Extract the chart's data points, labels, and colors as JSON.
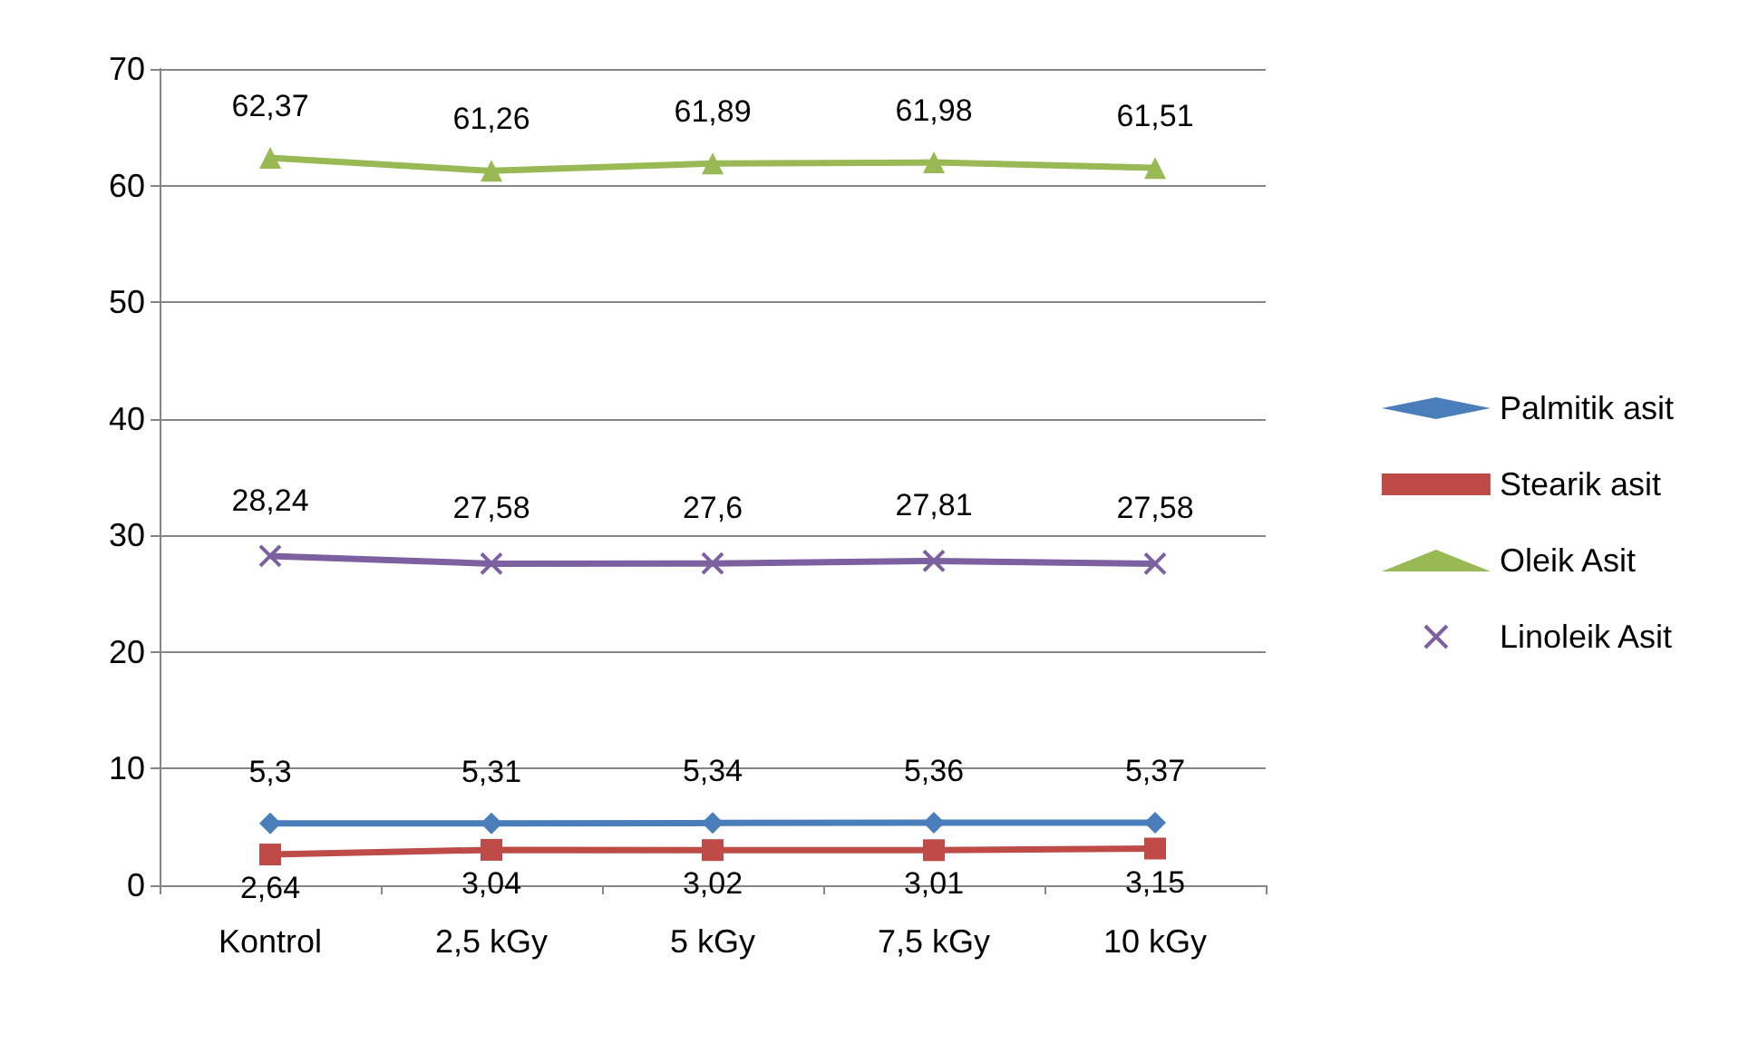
{
  "chart_data": {
    "type": "line",
    "categories": [
      "Kontrol",
      "2,5 kGy",
      "5 kGy",
      "7,5 kGy",
      "10 kGy"
    ],
    "series": [
      {
        "name": "Palmitik asit",
        "color": "#4a7ebb",
        "marker": "diamond",
        "values": [
          5.3,
          5.31,
          5.34,
          5.36,
          5.37
        ],
        "value_labels": [
          "5,3",
          "5,31",
          "5,34",
          "5,36",
          "5,37"
        ]
      },
      {
        "name": "Stearik asit",
        "color": "#be4b48",
        "marker": "square",
        "values": [
          2.64,
          3.04,
          3.02,
          3.01,
          3.15
        ],
        "value_labels": [
          "2,64",
          "3,04",
          "3,02",
          "3,01",
          "3,15"
        ]
      },
      {
        "name": "Oleik Asit",
        "color": "#98b954",
        "marker": "triangle",
        "values": [
          62.37,
          61.26,
          61.89,
          61.98,
          61.51
        ],
        "value_labels": [
          "62,37",
          "61,26",
          "61,89",
          "61,98",
          "61,51"
        ]
      },
      {
        "name": "Linoleik Asit",
        "color": "#7d60a0",
        "marker": "cross",
        "values": [
          28.24,
          27.58,
          27.6,
          27.81,
          27.58
        ],
        "value_labels": [
          "28,24",
          "27,58",
          "27,6",
          "27,81",
          "27,58"
        ]
      }
    ],
    "ylim": [
      0,
      70
    ],
    "yticks": [
      0,
      10,
      20,
      30,
      40,
      50,
      60,
      70
    ],
    "grid": "y",
    "legend": "right"
  }
}
